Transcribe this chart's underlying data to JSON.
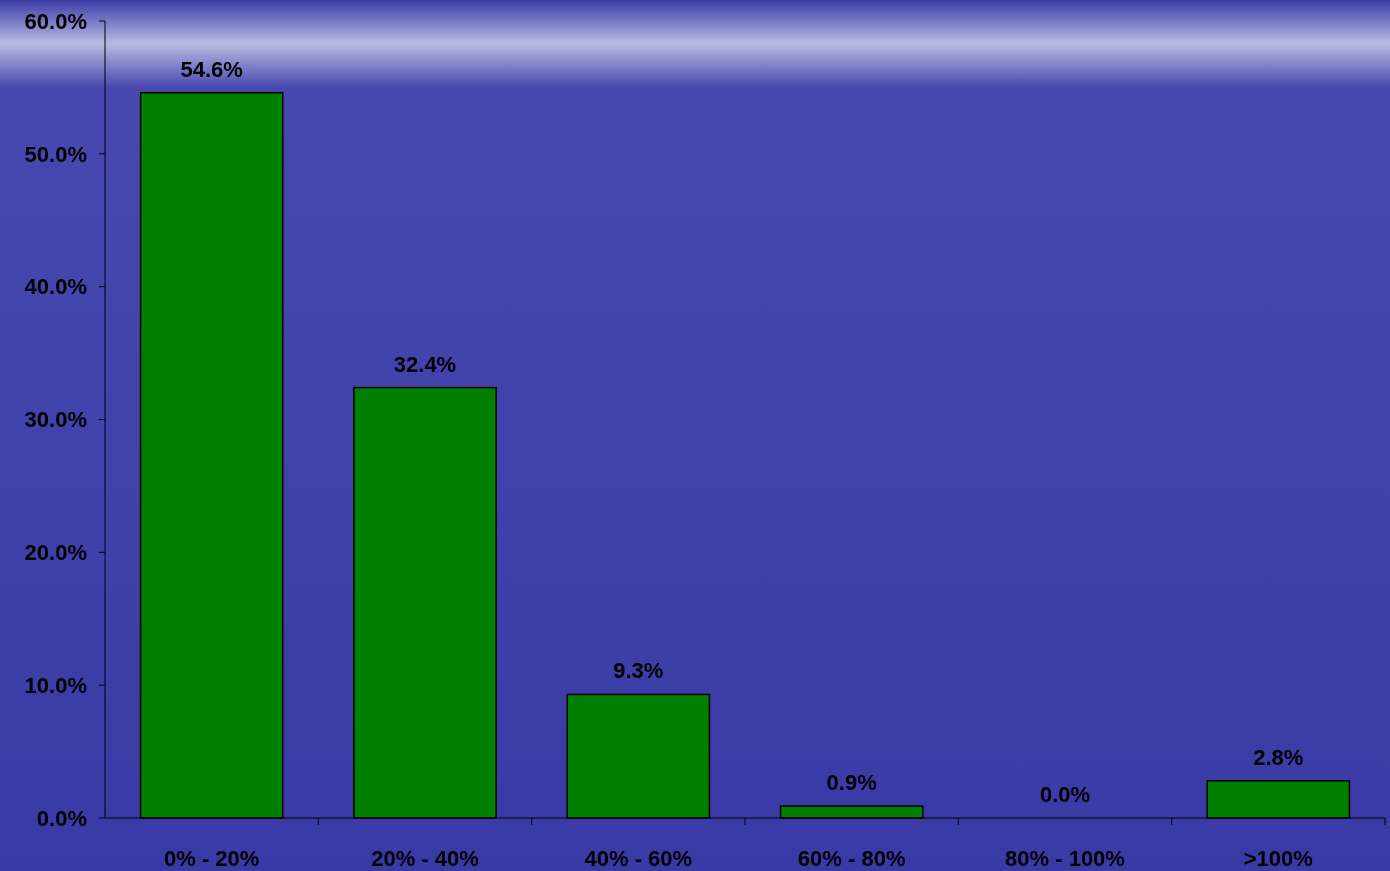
{
  "chart_data": {
    "type": "bar",
    "categories": [
      "0% - 20%",
      "20% - 40%",
      "40% - 60%",
      "60% - 80%",
      "80% - 100%",
      ">100%"
    ],
    "values": [
      54.6,
      32.4,
      9.3,
      0.9,
      0.0,
      2.8
    ],
    "value_labels": [
      "54.6%",
      "32.4%",
      "9.3%",
      "0.9%",
      "0.0%",
      "2.8%"
    ],
    "color": "#008000",
    "ylim": [
      0,
      60
    ],
    "yticks": [
      {
        "value": 0,
        "label": "0.0%"
      },
      {
        "value": 10,
        "label": "10.0%"
      },
      {
        "value": 20,
        "label": "20.0%"
      },
      {
        "value": 30,
        "label": "30.0%"
      },
      {
        "value": 40,
        "label": "40.0%"
      },
      {
        "value": 50,
        "label": "50.0%"
      },
      {
        "value": 60,
        "label": "60.0%"
      }
    ],
    "grid": false
  }
}
